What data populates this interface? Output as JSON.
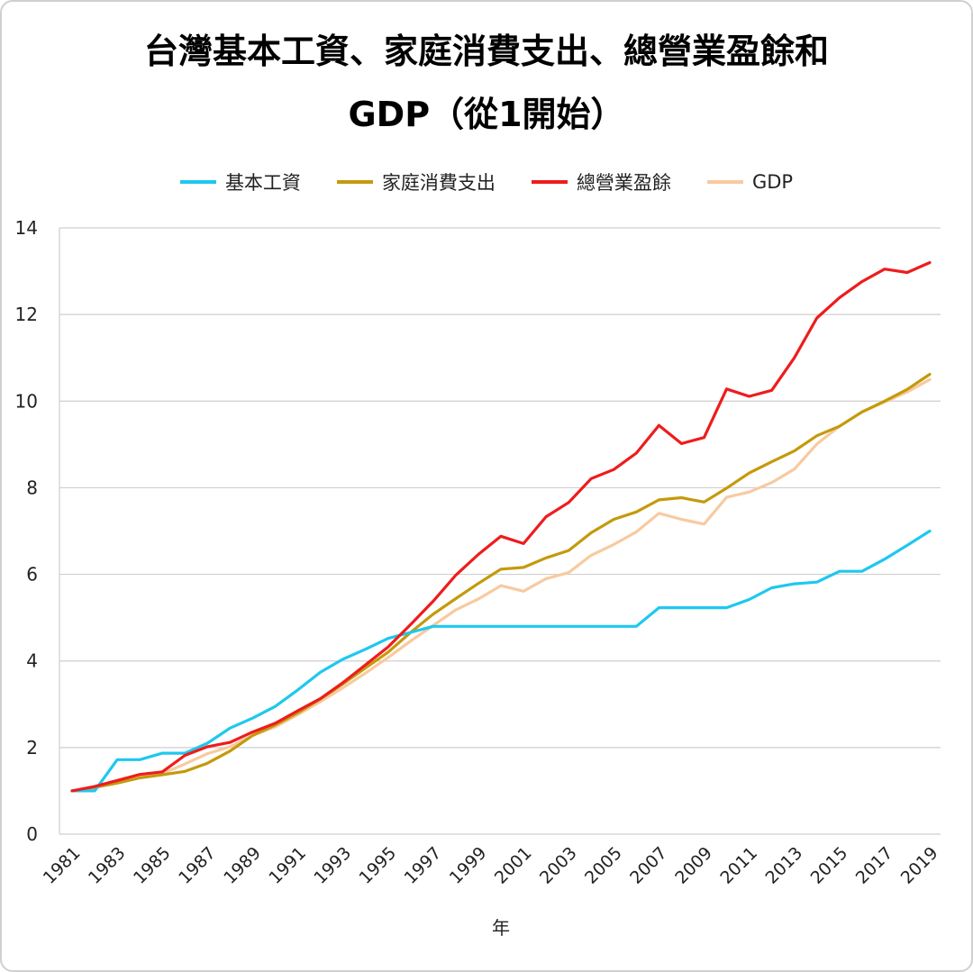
{
  "chart_data": {
    "type": "line",
    "title": "台灣基本工資、家庭消費支出、總營業盈餘和\nGDP（從1開始）",
    "xlabel": "年",
    "ylabel": "",
    "ylim": [
      0,
      14
    ],
    "yticks": [
      0,
      2,
      4,
      6,
      8,
      10,
      12,
      14
    ],
    "grid": "horizontal",
    "legend": "top-center",
    "x": [
      1981,
      1982,
      1983,
      1984,
      1985,
      1986,
      1987,
      1988,
      1989,
      1990,
      1991,
      1992,
      1993,
      1994,
      1995,
      1996,
      1997,
      1998,
      1999,
      2000,
      2001,
      2002,
      2003,
      2004,
      2005,
      2006,
      2007,
      2008,
      2009,
      2010,
      2011,
      2012,
      2013,
      2014,
      2015,
      2016,
      2017,
      2018,
      2019
    ],
    "xtick_labels": [
      "1981",
      "1983",
      "1985",
      "1987",
      "1989",
      "1991",
      "1993",
      "1995",
      "1997",
      "1999",
      "2001",
      "2003",
      "2005",
      "2007",
      "2009",
      "2011",
      "2013",
      "2015",
      "2017",
      "2019"
    ],
    "series": [
      {
        "name": "基本工資",
        "color": "#1ec8ee",
        "values": [
          1.0,
          1.0,
          1.72,
          1.72,
          1.87,
          1.87,
          2.1,
          2.45,
          2.68,
          2.95,
          3.33,
          3.74,
          4.04,
          4.27,
          4.52,
          4.66,
          4.8,
          4.8,
          4.8,
          4.8,
          4.8,
          4.8,
          4.8,
          4.8,
          4.8,
          4.8,
          5.23,
          5.23,
          5.23,
          5.23,
          5.42,
          5.69,
          5.78,
          5.82,
          6.07,
          6.07,
          6.35,
          6.67,
          7.0
        ]
      },
      {
        "name": "家庭消費支出",
        "color": "#c49a0c",
        "values": [
          1.0,
          1.08,
          1.18,
          1.3,
          1.37,
          1.45,
          1.64,
          1.92,
          2.28,
          2.52,
          2.8,
          3.12,
          3.47,
          3.84,
          4.2,
          4.66,
          5.08,
          5.44,
          5.79,
          6.12,
          6.16,
          6.38,
          6.55,
          6.96,
          7.27,
          7.44,
          7.72,
          7.77,
          7.67,
          7.99,
          8.34,
          8.6,
          8.85,
          9.2,
          9.42,
          9.75,
          10.0,
          10.27,
          10.62
        ]
      },
      {
        "name": "總營業盈餘",
        "color": "#ee1c1c",
        "values": [
          1.0,
          1.1,
          1.24,
          1.38,
          1.44,
          1.82,
          2.02,
          2.12,
          2.36,
          2.56,
          2.85,
          3.13,
          3.5,
          3.91,
          4.32,
          4.84,
          5.38,
          5.98,
          6.46,
          6.88,
          6.71,
          7.33,
          7.66,
          8.21,
          8.42,
          8.8,
          9.44,
          9.02,
          9.16,
          10.28,
          10.11,
          10.25,
          11.0,
          11.92,
          12.39,
          12.76,
          13.05,
          12.97,
          13.2
        ]
      },
      {
        "name": "GDP",
        "color": "#f8caa0",
        "values": [
          1.0,
          1.07,
          1.21,
          1.33,
          1.4,
          1.62,
          1.86,
          2.02,
          2.28,
          2.48,
          2.76,
          3.06,
          3.38,
          3.72,
          4.08,
          4.46,
          4.82,
          5.18,
          5.43,
          5.74,
          5.61,
          5.9,
          6.04,
          6.44,
          6.69,
          6.98,
          7.41,
          7.27,
          7.16,
          7.78,
          7.9,
          8.12,
          8.43,
          9.01,
          9.42,
          9.75,
          9.98,
          10.21,
          10.5
        ]
      }
    ]
  }
}
